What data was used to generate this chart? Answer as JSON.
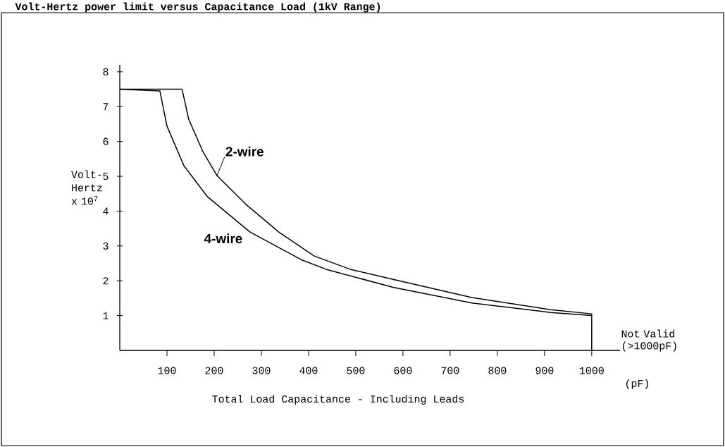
{
  "chart_data": {
    "type": "line",
    "title": "Volt-Hertz power limit versus Capacitance Load (1kV Range)",
    "xlabel": "Total Load Capacitance - Including Leads",
    "ylabel": "Volt-Hertz x 10$^{7}$",
    "xlim": [
      0,
      1060
    ],
    "ylim": [
      0,
      8.2
    ],
    "xticks": [
      100,
      200,
      300,
      400,
      500,
      600,
      700,
      800,
      900,
      1000
    ],
    "yticks": [
      1,
      2,
      3,
      4,
      5,
      6,
      7,
      8
    ],
    "grid": false,
    "marker": "none",
    "line_style": "solid",
    "series": [
      {
        "name": "2-wire",
        "color": "#000000",
        "x": [
          0,
          132,
          146,
          176,
          206,
          266,
          337,
          412,
          488,
          579,
          746,
          913,
          1000
        ],
        "values": [
          7.5,
          7.5,
          6.64,
          5.71,
          5.02,
          4.21,
          3.4,
          2.71,
          2.33,
          2.04,
          1.52,
          1.17,
          1.05
        ]
      },
      {
        "name": "4-wire",
        "color": "#000000",
        "x": [
          0,
          85,
          100,
          136,
          186,
          276,
          387,
          437,
          579,
          746,
          913,
          1000
        ],
        "values": [
          7.5,
          7.45,
          6.44,
          5.3,
          4.41,
          3.4,
          2.59,
          2.33,
          1.81,
          1.36,
          1.09,
          1.0
        ]
      }
    ],
    "ref_lines": [
      {
        "axis": "x",
        "value": 1000,
        "color": "#000000"
      }
    ],
    "annotations": [
      "(pF)",
      "Not Valid (>1000pF)"
    ]
  }
}
